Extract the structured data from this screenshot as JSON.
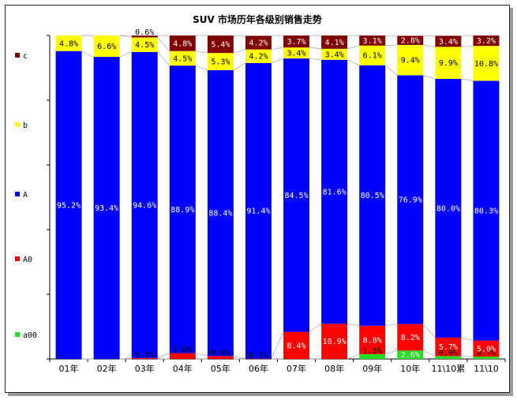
{
  "chart_data": {
    "type": "bar",
    "stacked": true,
    "normalized": true,
    "title": "SUV 市场历年各级别销售走势",
    "categories": [
      "01年",
      "02年",
      "03年",
      "04年",
      "05年",
      "06年",
      "07年",
      "08年",
      "09年",
      "10年",
      "11\\10累",
      "11\\10"
    ],
    "series": [
      {
        "name": "a00",
        "color": "#22dd22",
        "values": [
          0,
          0,
          0,
          0,
          0,
          0,
          0,
          0,
          1.5,
          2.6,
          0.9,
          0.7
        ]
      },
      {
        "name": "A0",
        "color": "#ff0000",
        "values": [
          0,
          0,
          0.3,
          1.8,
          0.9,
          0.1,
          8.4,
          10.9,
          8.8,
          8.2,
          5.7,
          5.0
        ]
      },
      {
        "name": "A",
        "color": "#0000ff",
        "values": [
          95.2,
          93.4,
          94.6,
          88.9,
          88.4,
          91.4,
          84.5,
          81.6,
          80.5,
          76.9,
          80.0,
          80.3
        ]
      },
      {
        "name": "b",
        "color": "#ffff00",
        "values": [
          4.8,
          6.6,
          4.5,
          4.5,
          5.3,
          4.2,
          3.4,
          3.4,
          6.1,
          9.4,
          9.9,
          10.8
        ]
      },
      {
        "name": "c",
        "color": "#800000",
        "values": [
          0,
          0,
          0.6,
          4.8,
          5.4,
          4.2,
          3.7,
          4.1,
          3.1,
          2.8,
          3.4,
          3.2
        ]
      }
    ],
    "labels": {
      "a00": [
        "",
        "",
        "",
        "",
        "",
        "",
        "",
        "",
        "1.5%",
        "2.6%",
        "0.9%",
        "0.7%"
      ],
      "A0": [
        "",
        "",
        "0.3%",
        "1.8%",
        "0.9%",
        "0.1%",
        "8.4%",
        "10.9%",
        "8.8%",
        "8.2%",
        "5.7%",
        "5.0%"
      ],
      "A": [
        "95.2%",
        "93.4%",
        "94.6%",
        "88.9%",
        "88.4%",
        "91.4%",
        "84.5%",
        "81.6%",
        "80.5%",
        "76.9%",
        "80.0%",
        "80.3%"
      ],
      "b": [
        "4.8%",
        "6.6%",
        "4.5%",
        "4.5%",
        "5.3%",
        "4.2%",
        "3.4%",
        "3.4%",
        "6.1%",
        "9.4%",
        "9.9%",
        "10.8%"
      ],
      "c": [
        "",
        "",
        "0.6%",
        "4.8%",
        "5.4%",
        "4.2%",
        "3.7%",
        "4.1%",
        "3.1%",
        "2.8%",
        "3.4%",
        "3.2%"
      ]
    },
    "legend": [
      "c",
      "b",
      "A",
      "A0",
      "a00"
    ],
    "legend_position": "left",
    "ylim": [
      0,
      100
    ],
    "grid": false
  }
}
